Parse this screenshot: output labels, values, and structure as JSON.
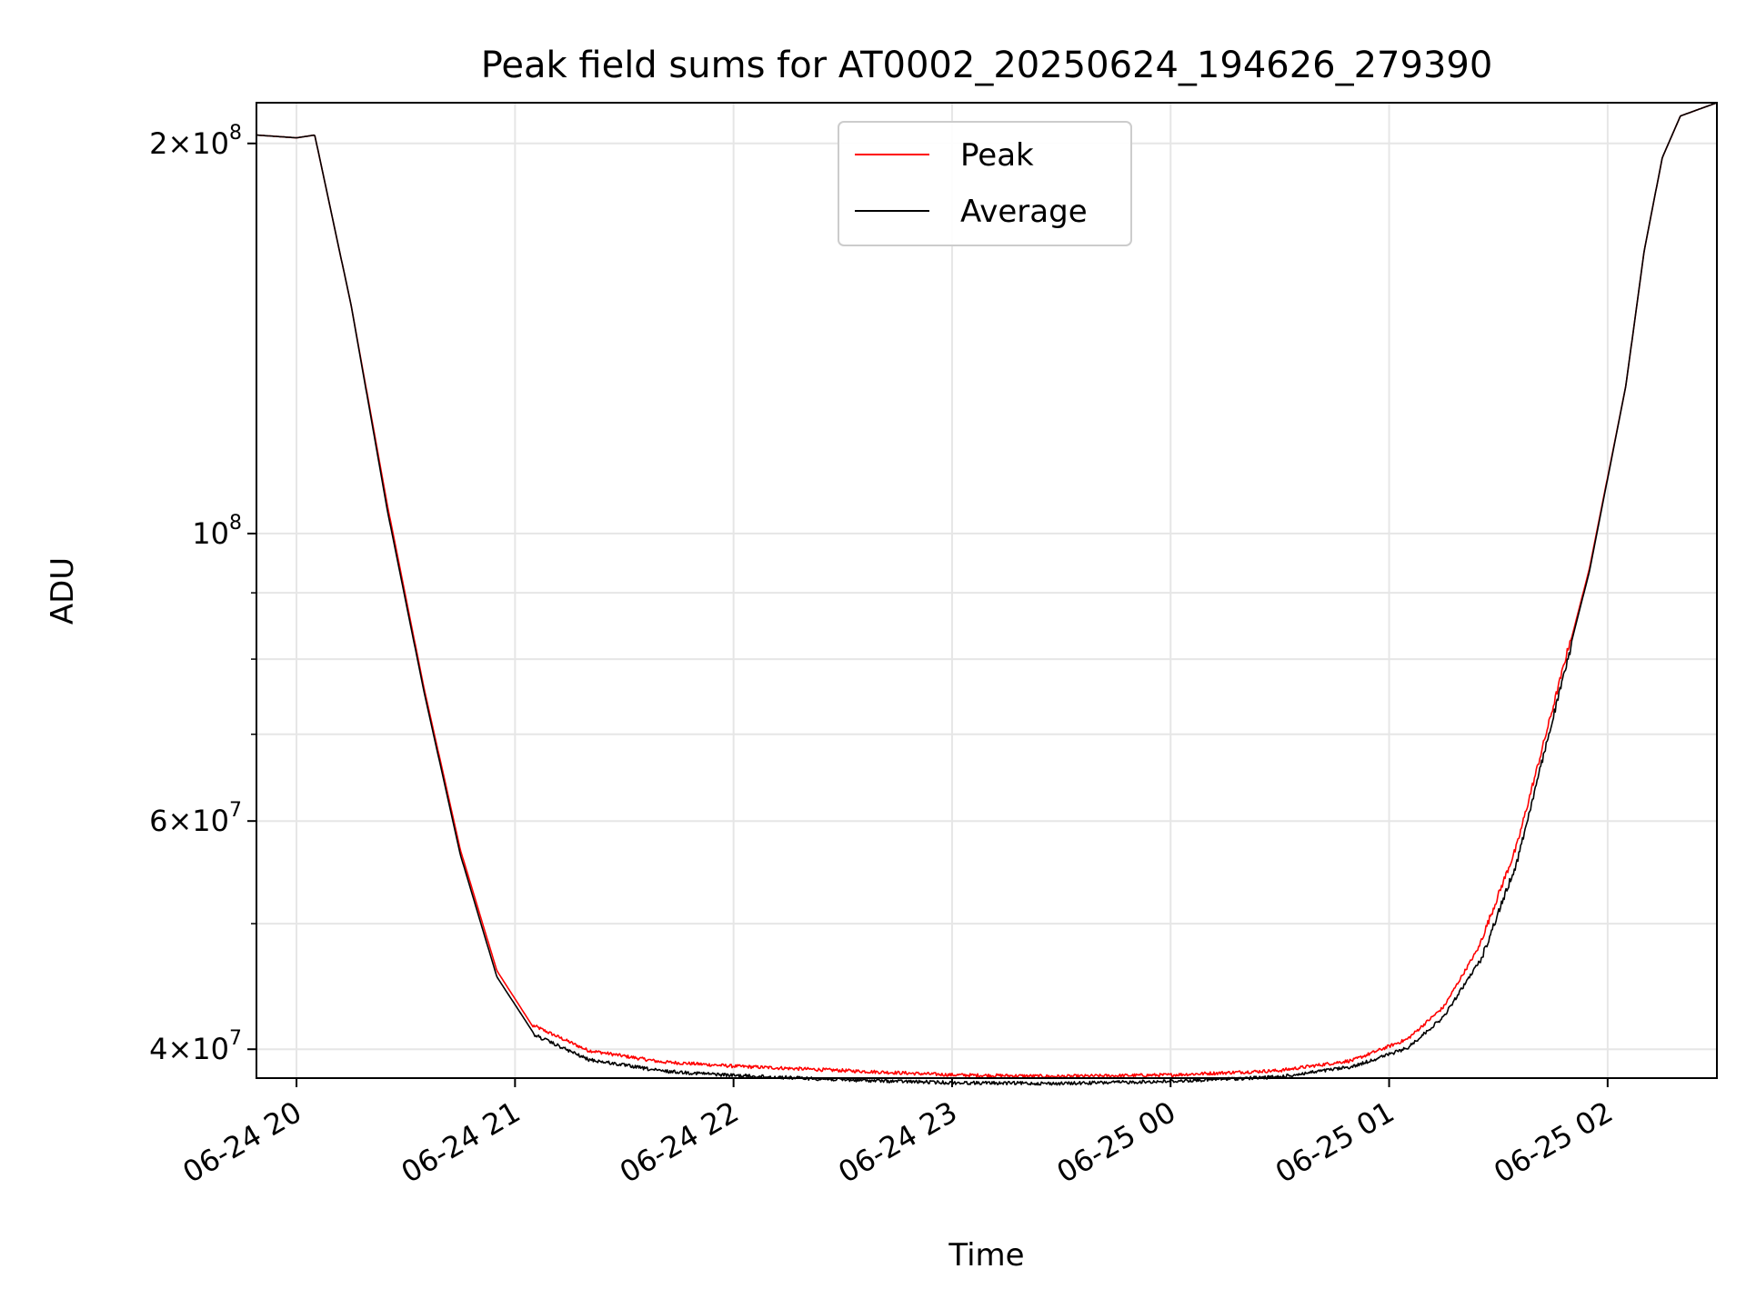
{
  "chart_data": {
    "type": "line",
    "title": "Peak field sums for AT0002_20250624_194626_279390",
    "xlabel": "Time",
    "ylabel": "ADU",
    "yscale": "log",
    "xlim": [
      "2025-06-24 19:49",
      "2025-06-25 02:30"
    ],
    "ylim": [
      38000000,
      215000000
    ],
    "x_ticks": [
      {
        "value": "2025-06-24 20:00",
        "label": "06-24 20"
      },
      {
        "value": "2025-06-24 21:00",
        "label": "06-24 21"
      },
      {
        "value": "2025-06-24 22:00",
        "label": "06-24 22"
      },
      {
        "value": "2025-06-24 23:00",
        "label": "06-24 23"
      },
      {
        "value": "2025-06-25 00:00",
        "label": "06-25 00"
      },
      {
        "value": "2025-06-25 01:00",
        "label": "06-25 01"
      },
      {
        "value": "2025-06-25 02:00",
        "label": "06-25 02"
      }
    ],
    "y_ticks": [
      {
        "value": 40000000,
        "mant": "4",
        "exp": "7"
      },
      {
        "value": 60000000,
        "mant": "6",
        "exp": "7"
      },
      {
        "value": 100000000,
        "mant": "",
        "exp": "8"
      },
      {
        "value": 200000000,
        "mant": "2",
        "exp": "8"
      }
    ],
    "y_minor_ticks": [
      50000000,
      70000000,
      80000000,
      90000000
    ],
    "grid": true,
    "legend_position": "upper-center",
    "series": [
      {
        "name": "Peak",
        "color": "#ff0000",
        "x": [
          "2025-06-24 19:49",
          "2025-06-24 20:00",
          "2025-06-24 20:05",
          "2025-06-24 20:15",
          "2025-06-24 20:25",
          "2025-06-24 20:35",
          "2025-06-24 20:45",
          "2025-06-24 20:55",
          "2025-06-24 21:05",
          "2025-06-24 21:20",
          "2025-06-24 21:40",
          "2025-06-24 22:00",
          "2025-06-24 22:30",
          "2025-06-24 23:00",
          "2025-06-24 23:30",
          "2025-06-25 00:00",
          "2025-06-25 00:30",
          "2025-06-25 00:50",
          "2025-06-25 01:05",
          "2025-06-25 01:15",
          "2025-06-25 01:25",
          "2025-06-25 01:35",
          "2025-06-25 01:45",
          "2025-06-25 01:55",
          "2025-06-25 02:05",
          "2025-06-25 02:10",
          "2025-06-25 02:15",
          "2025-06-25 02:20",
          "2025-06-25 02:30"
        ],
        "y": [
          203000000,
          202000000,
          203000000,
          150000000,
          105000000,
          76000000,
          57000000,
          46000000,
          41600000,
          39800000,
          39000000,
          38700000,
          38400000,
          38100000,
          38000000,
          38100000,
          38400000,
          39100000,
          40600000,
          43000000,
          48000000,
          57000000,
          73000000,
          94000000,
          130000000,
          165000000,
          195000000,
          210000000,
          215000000
        ]
      },
      {
        "name": "Average",
        "color": "#000000",
        "x": [
          "2025-06-24 19:49",
          "2025-06-24 20:00",
          "2025-06-24 20:05",
          "2025-06-24 20:15",
          "2025-06-24 20:25",
          "2025-06-24 20:35",
          "2025-06-24 20:45",
          "2025-06-24 20:55",
          "2025-06-24 21:05",
          "2025-06-24 21:20",
          "2025-06-24 21:40",
          "2025-06-24 22:00",
          "2025-06-24 22:30",
          "2025-06-24 23:00",
          "2025-06-24 23:30",
          "2025-06-25 00:00",
          "2025-06-25 00:30",
          "2025-06-25 00:50",
          "2025-06-25 01:05",
          "2025-06-25 01:15",
          "2025-06-25 01:25",
          "2025-06-25 01:35",
          "2025-06-25 01:45",
          "2025-06-25 01:55",
          "2025-06-25 02:05",
          "2025-06-25 02:10",
          "2025-06-25 02:15",
          "2025-06-25 02:20",
          "2025-06-25 02:30"
        ],
        "y": [
          203000000,
          202000000,
          203000000,
          150000000,
          104000000,
          75500000,
          56500000,
          45500000,
          41200000,
          39400000,
          38600000,
          38300000,
          38000000,
          37800000,
          37750000,
          37900000,
          38200000,
          38900000,
          40200000,
          42500000,
          47000000,
          56000000,
          72500000,
          93500000,
          130000000,
          165000000,
          195000000,
          210000000,
          215000000
        ]
      }
    ]
  }
}
